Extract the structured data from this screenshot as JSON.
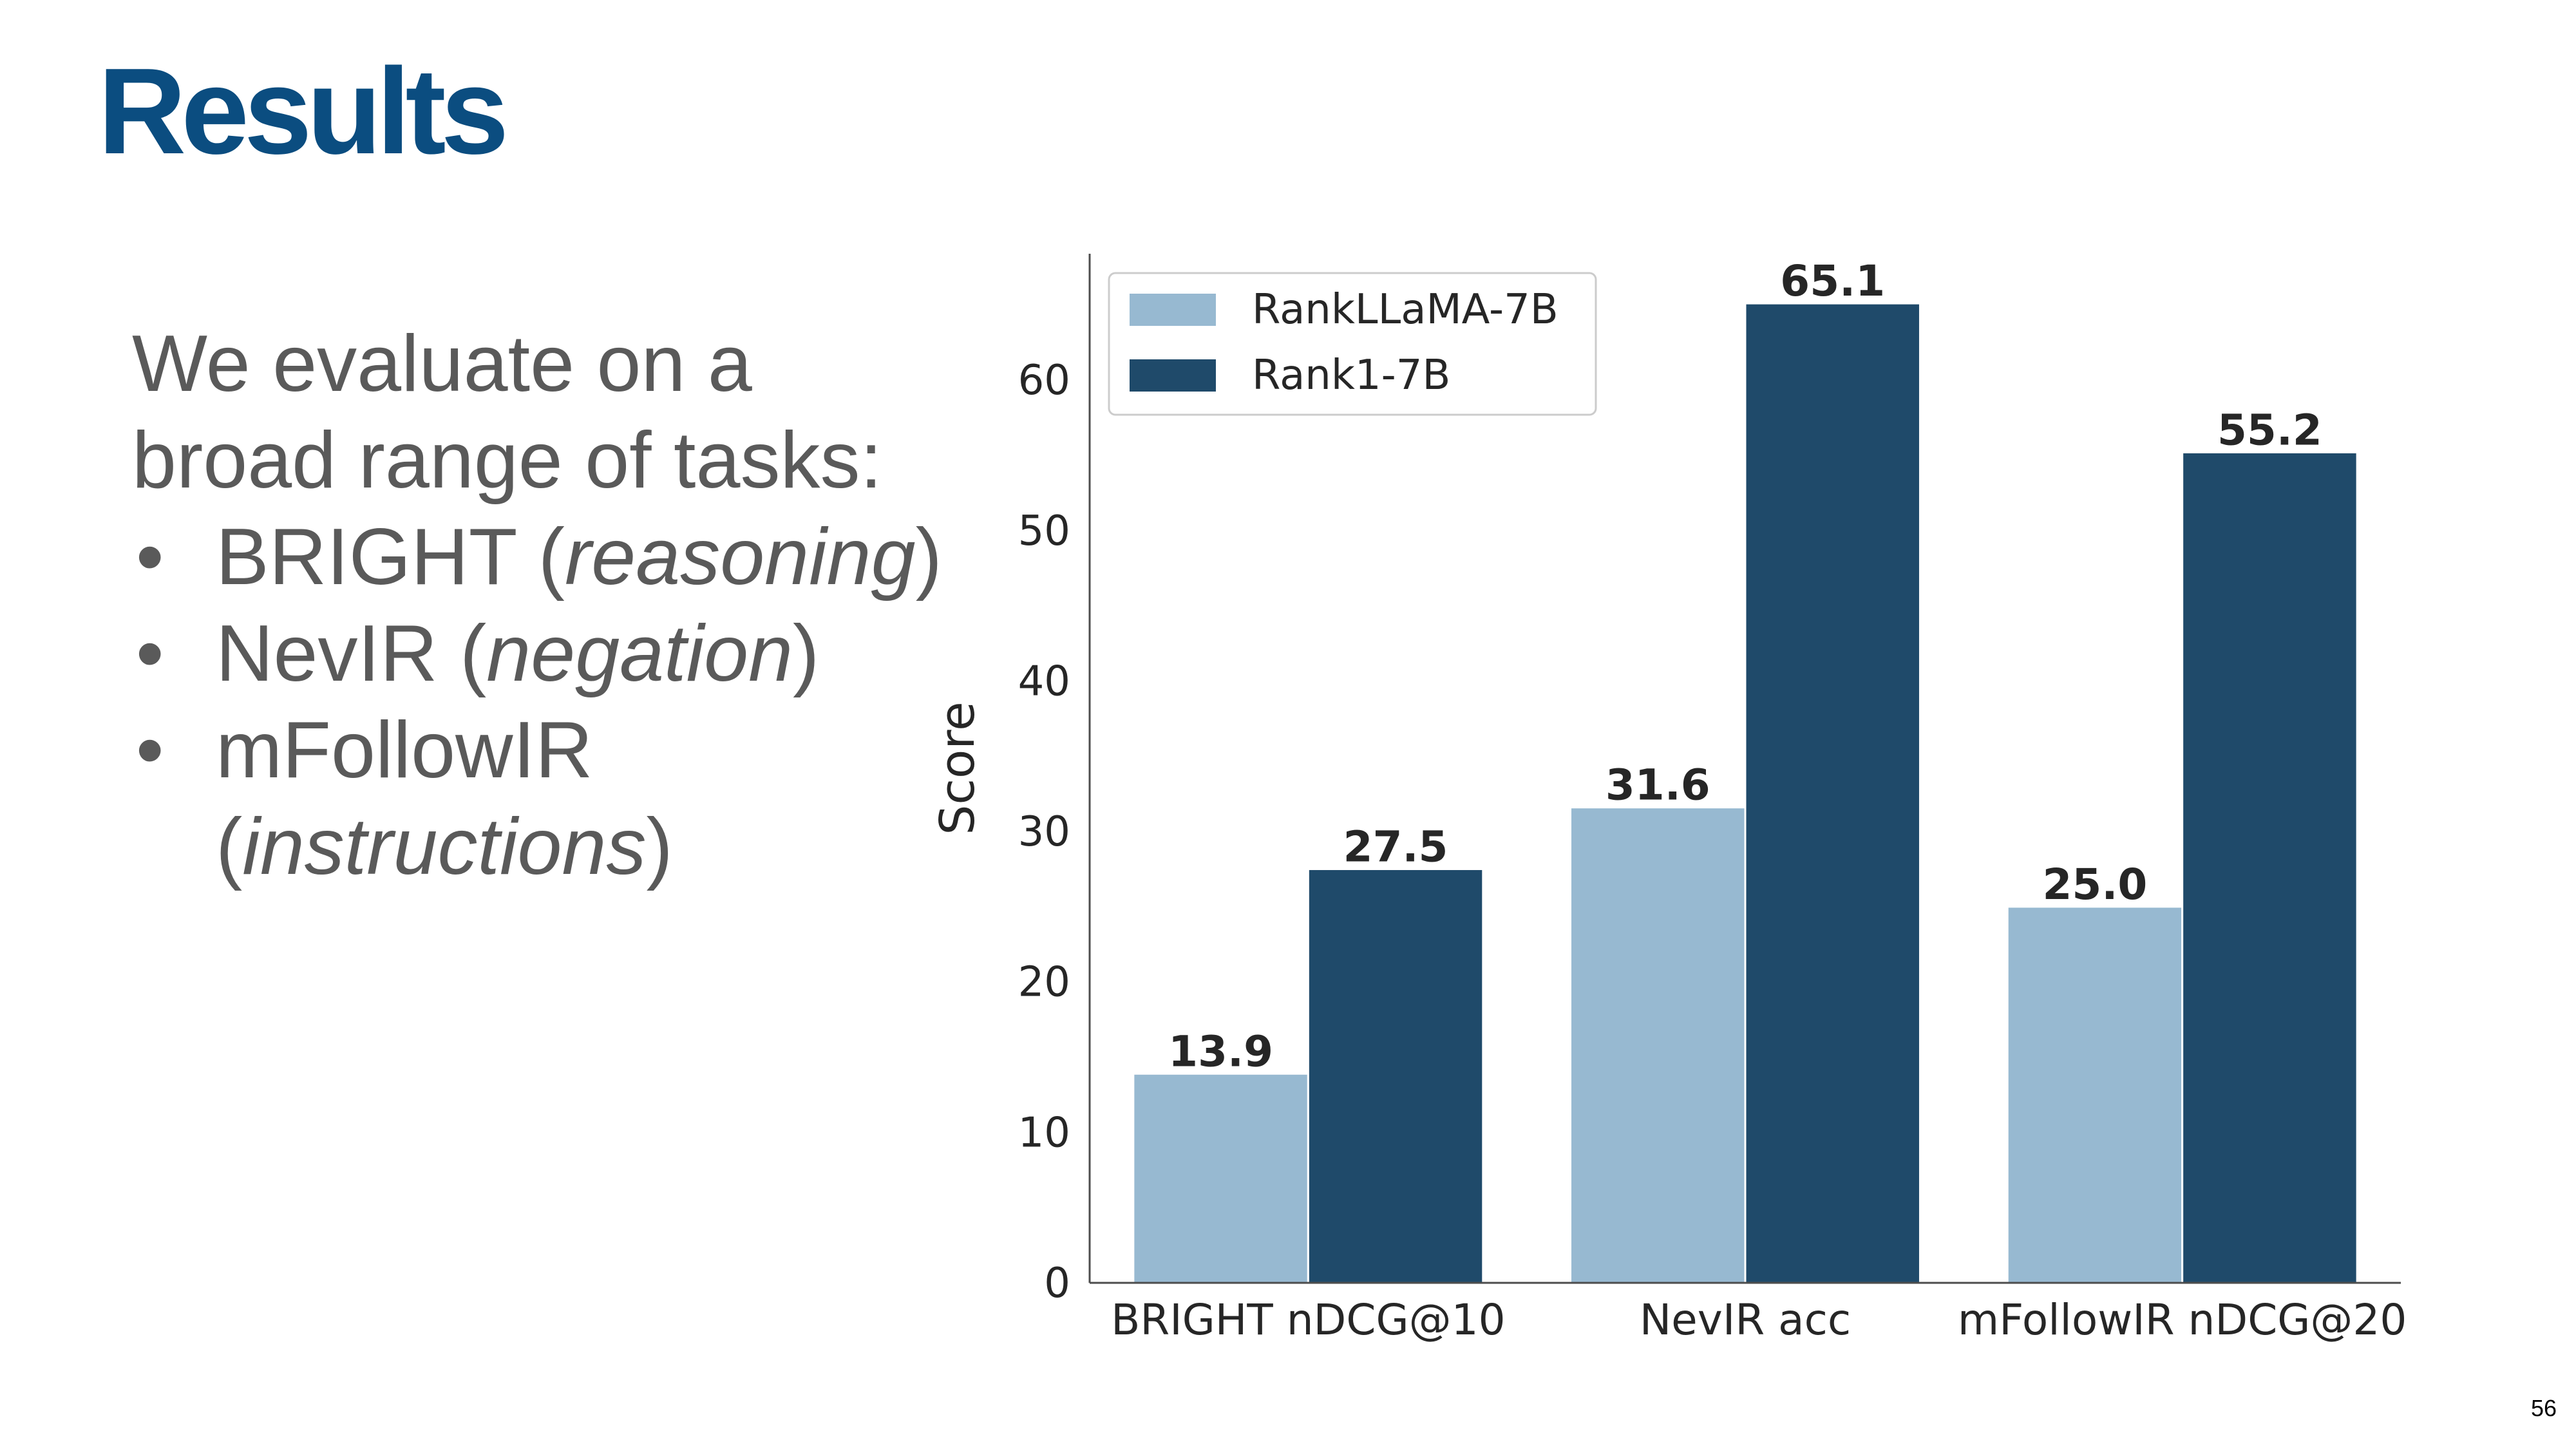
{
  "slide": {
    "title": "Results",
    "intro": "We evaluate on a broad range of tasks:",
    "bullets": [
      {
        "name": "BRIGHT",
        "note": "reasoning"
      },
      {
        "name": "NevIR",
        "note": "negation"
      },
      {
        "name": "mFollowIR",
        "note": "instructions"
      }
    ],
    "page_number": "56"
  },
  "chart_data": {
    "type": "bar",
    "categories": [
      "BRIGHT nDCG@10",
      "NevIR acc",
      "mFollowIR nDCG@20"
    ],
    "series": [
      {
        "name": "RankLLaMA-7B",
        "values": [
          13.9,
          31.6,
          25.0
        ],
        "labels": [
          "13.9",
          "31.6",
          "25.0"
        ],
        "color": "#97b9d1"
      },
      {
        "name": "Rank1-7B",
        "values": [
          27.5,
          65.1,
          55.2
        ],
        "labels": [
          "27.5",
          "65.1",
          "55.2"
        ],
        "color": "#1f4a6a"
      }
    ],
    "ylabel": "Score",
    "xlabel": "",
    "yticks": [
      0,
      10,
      20,
      30,
      40,
      50,
      60
    ],
    "ylim": [
      0,
      68.4
    ],
    "grid": false,
    "legend": "upper-left"
  }
}
